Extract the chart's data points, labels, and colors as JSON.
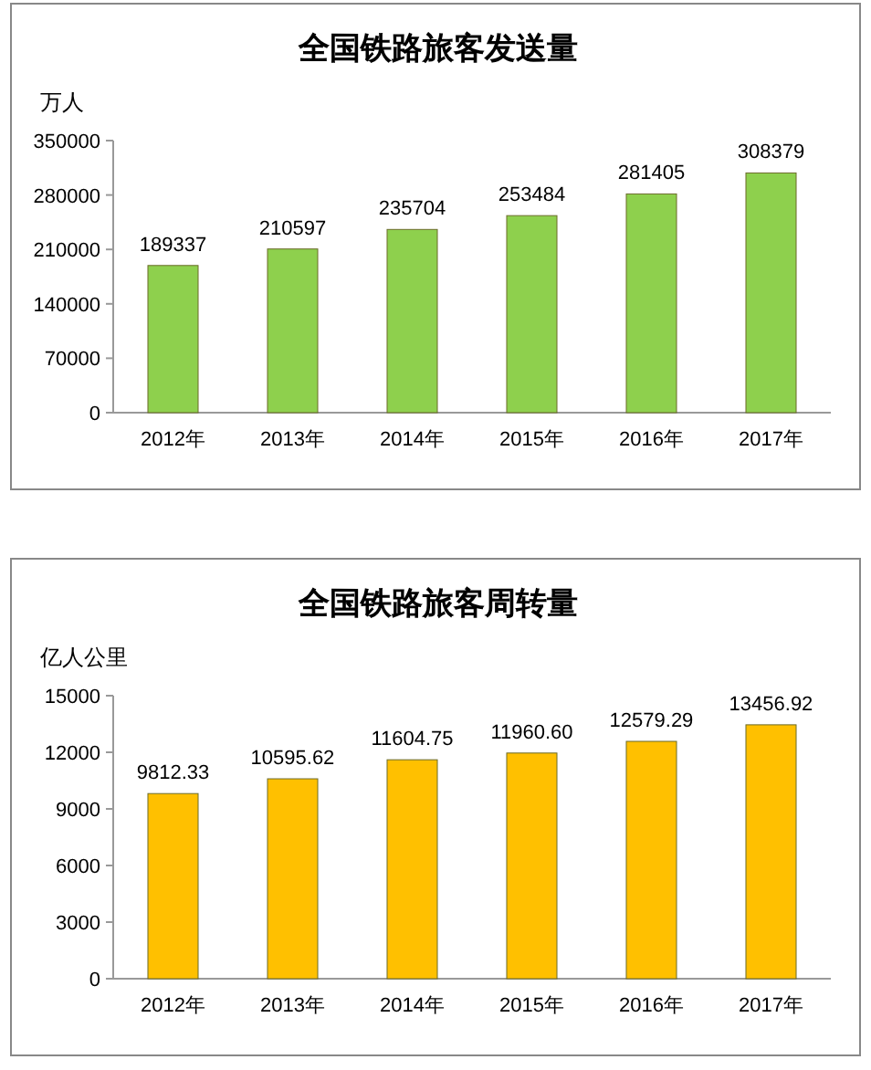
{
  "chart_data": [
    {
      "type": "bar",
      "title": "全国铁路旅客发送量",
      "ylabel": "万人",
      "categories": [
        "2012年",
        "2013年",
        "2014年",
        "2015年",
        "2016年",
        "2017年"
      ],
      "values": [
        189337,
        210597,
        235704,
        253484,
        281405,
        308379
      ],
      "color": "#8ed04d",
      "ylim": [
        0,
        350000
      ],
      "yticks": [
        0,
        70000,
        140000,
        210000,
        280000,
        350000
      ],
      "data_labels": true
    },
    {
      "type": "bar",
      "title": "全国铁路旅客周转量",
      "ylabel": "亿人公里",
      "categories": [
        "2012年",
        "2013年",
        "2014年",
        "2015年",
        "2016年",
        "2017年"
      ],
      "values": [
        9812.33,
        10595.62,
        11604.75,
        11960.6,
        12579.29,
        13456.92
      ],
      "value_labels": [
        "9812.33",
        "10595.62",
        "11604.75",
        "11960.60",
        "12579.29",
        "13456.92"
      ],
      "color": "#ffc000",
      "ylim": [
        0,
        15000
      ],
      "yticks": [
        0,
        3000,
        6000,
        9000,
        12000,
        15000
      ]
    }
  ]
}
